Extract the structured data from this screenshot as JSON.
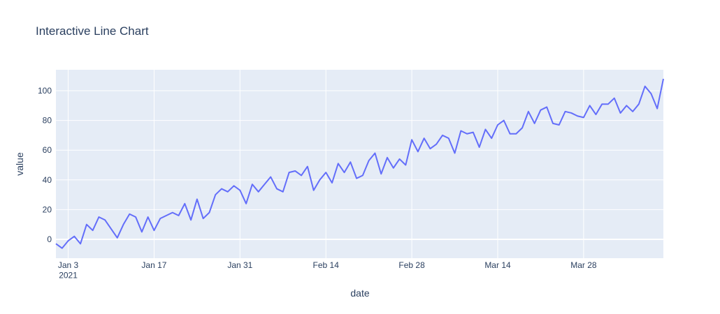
{
  "chart_data": {
    "type": "line",
    "title": "Interactive Line Chart",
    "x_label": "date",
    "y_label": "value",
    "x": [
      "2021-01-01",
      "2021-01-02",
      "2021-01-03",
      "2021-01-04",
      "2021-01-05",
      "2021-01-06",
      "2021-01-07",
      "2021-01-08",
      "2021-01-09",
      "2021-01-10",
      "2021-01-11",
      "2021-01-12",
      "2021-01-13",
      "2021-01-14",
      "2021-01-15",
      "2021-01-16",
      "2021-01-17",
      "2021-01-18",
      "2021-01-19",
      "2021-01-20",
      "2021-01-21",
      "2021-01-22",
      "2021-01-23",
      "2021-01-24",
      "2021-01-25",
      "2021-01-26",
      "2021-01-27",
      "2021-01-28",
      "2021-01-29",
      "2021-01-30",
      "2021-01-31",
      "2021-02-01",
      "2021-02-02",
      "2021-02-03",
      "2021-02-04",
      "2021-02-05",
      "2021-02-06",
      "2021-02-07",
      "2021-02-08",
      "2021-02-09",
      "2021-02-10",
      "2021-02-11",
      "2021-02-12",
      "2021-02-13",
      "2021-02-14",
      "2021-02-15",
      "2021-02-16",
      "2021-02-17",
      "2021-02-18",
      "2021-02-19",
      "2021-02-20",
      "2021-02-21",
      "2021-02-22",
      "2021-02-23",
      "2021-02-24",
      "2021-02-25",
      "2021-02-26",
      "2021-02-27",
      "2021-02-28",
      "2021-03-01",
      "2021-03-02",
      "2021-03-03",
      "2021-03-04",
      "2021-03-05",
      "2021-03-06",
      "2021-03-07",
      "2021-03-08",
      "2021-03-09",
      "2021-03-10",
      "2021-03-11",
      "2021-03-12",
      "2021-03-13",
      "2021-03-14",
      "2021-03-15",
      "2021-03-16",
      "2021-03-17",
      "2021-03-18",
      "2021-03-19",
      "2021-03-20",
      "2021-03-21",
      "2021-03-22",
      "2021-03-23",
      "2021-03-24",
      "2021-03-25",
      "2021-03-26",
      "2021-03-27",
      "2021-03-28",
      "2021-03-29",
      "2021-03-30",
      "2021-03-31",
      "2021-04-01",
      "2021-04-02",
      "2021-04-03",
      "2021-04-04",
      "2021-04-05",
      "2021-04-06",
      "2021-04-07",
      "2021-04-08",
      "2021-04-09",
      "2021-04-10"
    ],
    "series": [
      {
        "color": "#636efa",
        "values": [
          -3,
          -6,
          -1,
          2,
          -3,
          10,
          6,
          15,
          13,
          7,
          1,
          10,
          17,
          15,
          5,
          15,
          6,
          14,
          16,
          18,
          16,
          24,
          13,
          27,
          14,
          18,
          30,
          34,
          32,
          36,
          33,
          24,
          37,
          32,
          37,
          42,
          34,
          32,
          45,
          46,
          43,
          49,
          33,
          40,
          45,
          38,
          51,
          45,
          52,
          41,
          43,
          53,
          58,
          44,
          55,
          48,
          54,
          50,
          67,
          59,
          68,
          61,
          64,
          70,
          68,
          58,
          73,
          71,
          72,
          62,
          74,
          68,
          77,
          80,
          71,
          71,
          75,
          86,
          78,
          87,
          89,
          78,
          77,
          86,
          85,
          83,
          82,
          90,
          84,
          91,
          91,
          95,
          85,
          90,
          86,
          91,
          103,
          98,
          88,
          108
        ]
      }
    ],
    "xlim": [
      "2021-01-01",
      "2021-04-10"
    ],
    "xticks": [
      {
        "value": "2021-01-03",
        "label": "Jan 3\n2021"
      },
      {
        "value": "2021-01-17",
        "label": "Jan 17"
      },
      {
        "value": "2021-01-31",
        "label": "Jan 31"
      },
      {
        "value": "2021-02-14",
        "label": "Feb 14"
      },
      {
        "value": "2021-02-28",
        "label": "Feb 28"
      },
      {
        "value": "2021-03-14",
        "label": "Mar 14"
      },
      {
        "value": "2021-03-28",
        "label": "Mar 28"
      }
    ],
    "ylim": [
      -12.7,
      114.1
    ],
    "yticks": [
      0,
      20,
      40,
      60,
      80,
      100
    ],
    "grid": true
  }
}
